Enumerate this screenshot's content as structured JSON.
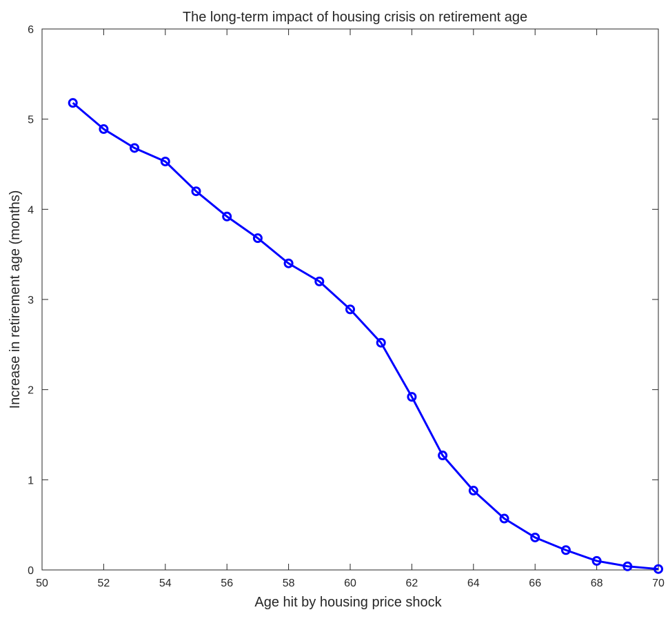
{
  "chart_data": {
    "type": "line",
    "title": "The long-term impact of housing crisis on retirement age",
    "xlabel": "Age hit by housing price shock",
    "ylabel": "Increase in retirement age (months)",
    "xlim": [
      50,
      70
    ],
    "ylim": [
      0,
      6
    ],
    "xticks": [
      50,
      52,
      54,
      56,
      58,
      60,
      62,
      64,
      66,
      68,
      70
    ],
    "yticks": [
      0,
      1,
      2,
      3,
      4,
      5,
      6
    ],
    "grid": false,
    "legend": "none",
    "series": [
      {
        "marker": "circle",
        "color": "#0000ff",
        "x": [
          51,
          52,
          53,
          54,
          55,
          56,
          57,
          58,
          59,
          60,
          61,
          62,
          63,
          64,
          65,
          66,
          67,
          68,
          69,
          70
        ],
        "y": [
          5.18,
          4.89,
          4.68,
          4.53,
          4.2,
          3.92,
          3.68,
          3.4,
          3.2,
          2.89,
          2.52,
          1.92,
          1.27,
          0.88,
          0.57,
          0.36,
          0.22,
          0.1,
          0.04,
          0.01
        ]
      }
    ]
  }
}
